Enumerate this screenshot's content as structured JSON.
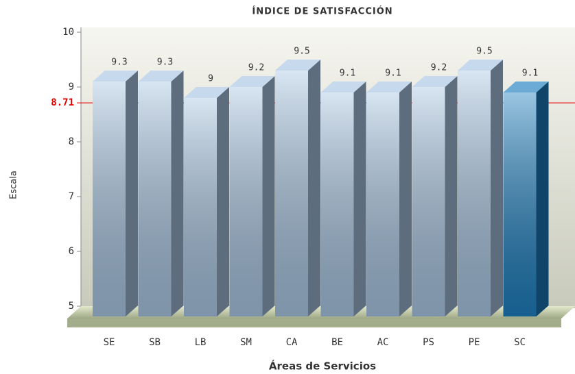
{
  "chart_data": {
    "type": "bar3d",
    "title": "ÍNDICE DE SATISFACCIÓN",
    "x_label": "Áreas de Servicios",
    "y_label": "Escala",
    "categories": [
      "SE",
      "SB",
      "LB",
      "SM",
      "CA",
      "BE",
      "AC",
      "PS",
      "PE",
      "SC"
    ],
    "values": [
      9.3,
      9.3,
      9,
      9.2,
      9.5,
      9.1,
      9.1,
      9.2,
      9.5,
      9.1
    ],
    "bar_colors": [
      "#a9c6e3",
      "#a9c6e3",
      "#a9c6e3",
      "#a9c6e3",
      "#a9c6e3",
      "#a9c6e3",
      "#a9c6e3",
      "#a9c6e3",
      "#a9c6e3",
      "#1e7fbf"
    ],
    "ylim": [
      5,
      10
    ],
    "yticks": [
      5,
      6,
      7,
      8,
      9,
      10
    ],
    "target_line": 8.71,
    "target_color": "#e00000"
  }
}
